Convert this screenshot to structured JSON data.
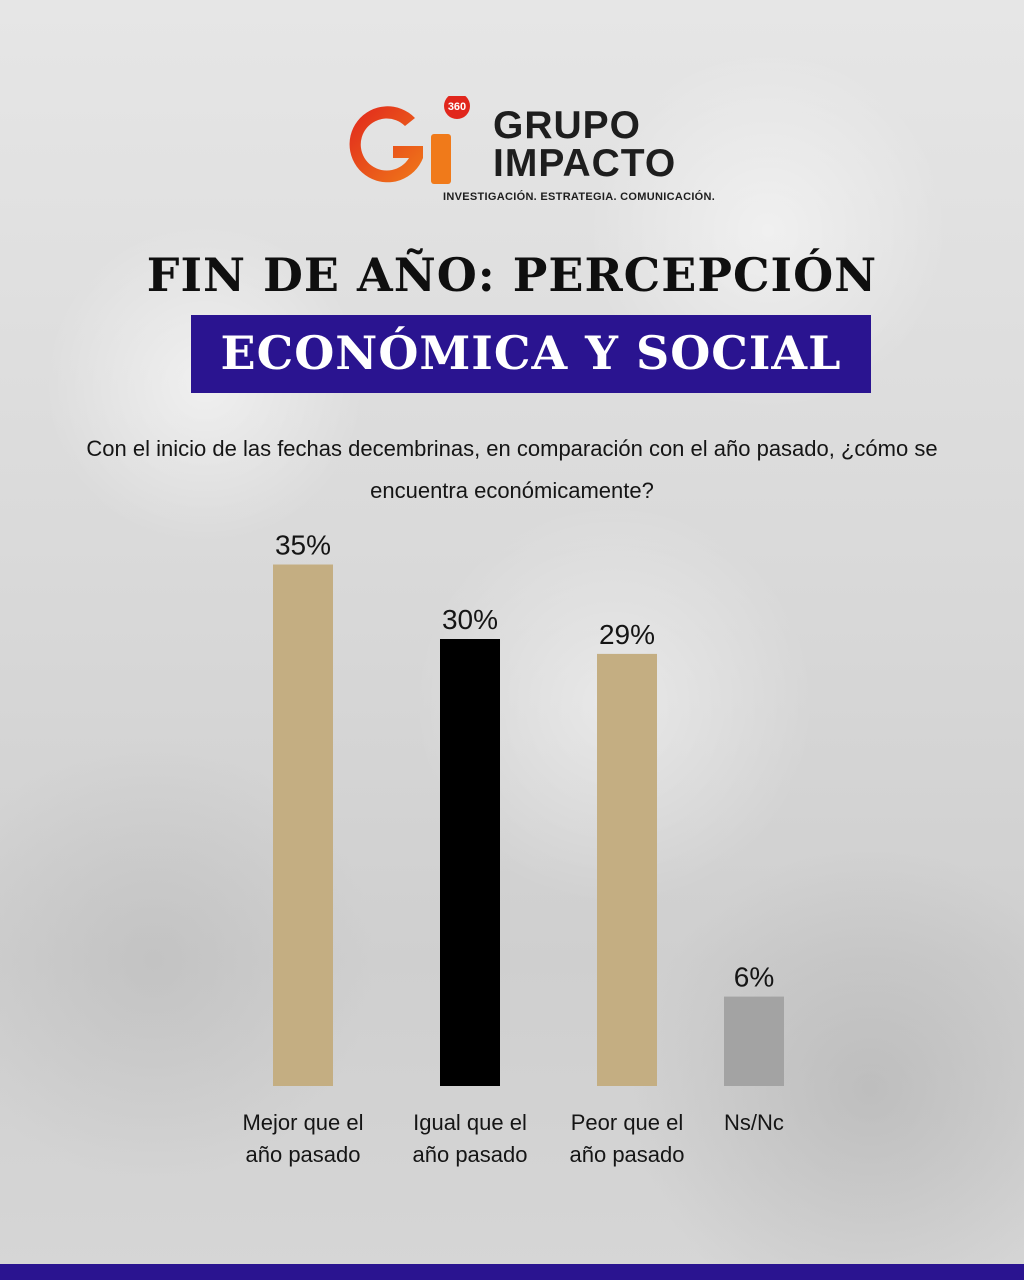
{
  "logo": {
    "badge": "360",
    "brand_line1": "GRUPO",
    "brand_line2": "IMPACTO",
    "tagline": "INVESTIGACIÓN. ESTRATEGIA. COMUNICACIÓN."
  },
  "title_line1": "FIN DE AÑO: PERCEPCIÓN",
  "title_line2": "ECONÓMICA Y SOCIAL",
  "question": "Con el inicio de las fechas decembrinas, en comparación con el año pasado, ¿cómo se encuentra económicamente?",
  "colors": {
    "accent": "#2a1490",
    "bar_tan": "#c4ae82",
    "bar_black": "#000000",
    "bar_gray": "#a3a3a3"
  },
  "chart_data": {
    "type": "bar",
    "categories": [
      "Mejor que el año pasado",
      "Igual que el año pasado",
      "Peor que el año pasado",
      "Ns/Nc"
    ],
    "category_lines": [
      [
        "Mejor que el",
        "año pasado"
      ],
      [
        "Igual que el",
        "año pasado"
      ],
      [
        "Peor que el",
        "año pasado"
      ],
      [
        "Ns/Nc"
      ]
    ],
    "values": [
      35,
      30,
      29,
      6
    ],
    "value_labels": [
      "35%",
      "30%",
      "29%",
      "6%"
    ],
    "bar_colors": [
      "#c4ae82",
      "#000000",
      "#c4ae82",
      "#a3a3a3"
    ],
    "unit": "%",
    "grid": false,
    "legend": "none"
  }
}
